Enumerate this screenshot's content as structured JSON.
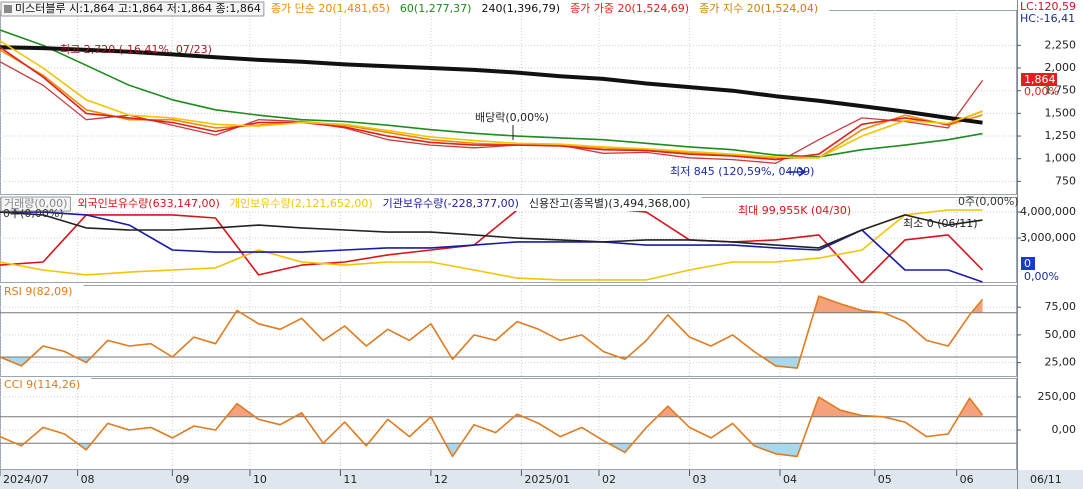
{
  "chart_data": [
    {
      "type": "line",
      "title": "미스터블루 시:1,864 고:1,864 저:1,864 종:1,864",
      "x": [
        0,
        10,
        20,
        30,
        40,
        50,
        60,
        70,
        80,
        90,
        100,
        110,
        120,
        130,
        140,
        150,
        160,
        170,
        180,
        190,
        200,
        210,
        220,
        228
      ],
      "xlim": [
        0,
        236
      ],
      "ylim": [
        600,
        2640
      ],
      "yticks": [
        {
          "value": 2250,
          "label": "2,250"
        },
        {
          "value": 2000,
          "label": "2,000"
        },
        {
          "value": 1750,
          "label": "1,750"
        },
        {
          "value": 1500,
          "label": "1,500"
        },
        {
          "value": 1250,
          "label": "1,250"
        },
        {
          "value": 1000,
          "label": "1,000"
        },
        750
      ],
      "grid": true,
      "color": "#c83c3c",
      "values": [
        2070,
        1810,
        1430,
        1480,
        1370,
        1260,
        1430,
        1410,
        1340,
        1210,
        1150,
        1120,
        1150,
        1150,
        1060,
        1070,
        1010,
        990,
        950,
        1210,
        1450,
        1410,
        1340,
        1864
      ],
      "series": [
        {
          "name": "종가 단순 20(1,481,65)",
          "color": "#f08a00",
          "values": [
            2200,
            1920,
            1540,
            1430,
            1430,
            1340,
            1370,
            1410,
            1370,
            1290,
            1210,
            1170,
            1150,
            1150,
            1120,
            1100,
            1070,
            1040,
            1010,
            1010,
            1320,
            1480,
            1370,
            1482
          ]
        },
        {
          "name": "60(1,277,37)",
          "color": "#1e8c1e",
          "values": [
            2420,
            2250,
            2030,
            1810,
            1650,
            1540,
            1480,
            1430,
            1410,
            1370,
            1320,
            1280,
            1250,
            1230,
            1210,
            1170,
            1130,
            1100,
            1040,
            1020,
            1100,
            1150,
            1210,
            1277
          ]
        },
        {
          "name": "240(1,396,79)",
          "color": "#111111",
          "width": 4,
          "values": [
            2230,
            2220,
            2200,
            2180,
            2150,
            2120,
            2090,
            2070,
            2040,
            2020,
            2000,
            1980,
            1950,
            1910,
            1880,
            1830,
            1790,
            1750,
            1690,
            1640,
            1580,
            1520,
            1450,
            1397
          ]
        },
        {
          "name": "종가 가중 20(1,524,69)",
          "color": "#e0201a",
          "values": [
            2230,
            1900,
            1500,
            1450,
            1400,
            1300,
            1400,
            1400,
            1350,
            1250,
            1180,
            1150,
            1150,
            1140,
            1100,
            1090,
            1050,
            1030,
            990,
            1050,
            1380,
            1450,
            1380,
            1525
          ]
        },
        {
          "name": "종가 지수 20(1,524,04)",
          "color": "#f5c400",
          "values": [
            2300,
            2000,
            1650,
            1480,
            1450,
            1380,
            1360,
            1400,
            1380,
            1310,
            1240,
            1200,
            1170,
            1160,
            1130,
            1110,
            1080,
            1050,
            1020,
            1010,
            1250,
            1420,
            1390,
            1524
          ]
        }
      ],
      "annotations": {
        "high": "최고 2,720 (-16,41%, 07/23)",
        "ex_dividend": "배당락(0,00%)",
        "low": "최저 845 (120,59%, 04/09)",
        "lc": "LC:120,59",
        "hc": "HC:-16,41",
        "last_price": "1,864",
        "last_pct": "0,00%"
      }
    },
    {
      "type": "line",
      "title": "거래량(0,00)",
      "x": [
        0,
        10,
        20,
        30,
        40,
        50,
        60,
        70,
        80,
        90,
        100,
        110,
        120,
        130,
        140,
        150,
        160,
        170,
        180,
        190,
        200,
        210,
        220,
        228
      ],
      "xlim": [
        0,
        236
      ],
      "ylim": [
        1270000,
        4580000
      ],
      "yticks": [
        {
          "value": 4000000,
          "label": "4,000,000"
        },
        {
          "value": 3000000,
          "label": "3,000,000"
        }
      ],
      "grid": true,
      "series": [
        {
          "name": "외국인보유수량(633,147,00)",
          "color": "#d8141a",
          "values": [
            1960000,
            2080000,
            3890000,
            3890000,
            3890000,
            3770000,
            1580000,
            1960000,
            2080000,
            2350000,
            2540000,
            2730000,
            4080000,
            4160000,
            4160000,
            4000000,
            2930000,
            2850000,
            2930000,
            3120000,
            1270000,
            2930000,
            3120000,
            1770000
          ]
        },
        {
          "name": "개인보유수량(2,121,652,00)",
          "color": "#f5c400",
          "values": [
            2080000,
            1770000,
            1580000,
            1690000,
            1770000,
            1850000,
            2540000,
            2080000,
            1960000,
            2080000,
            2080000,
            1770000,
            1460000,
            1390000,
            1390000,
            1390000,
            1770000,
            2080000,
            2080000,
            2230000,
            2540000,
            3890000,
            4080000,
            4080000
          ]
        },
        {
          "name": "기관보유수량(-228,377,00)",
          "color": "#1a1aa8",
          "values": [
            4000000,
            4000000,
            3890000,
            3500000,
            2540000,
            2460000,
            2460000,
            2460000,
            2540000,
            2620000,
            2620000,
            2730000,
            2850000,
            2850000,
            2850000,
            2730000,
            2730000,
            2730000,
            2620000,
            2540000,
            3310000,
            1770000,
            1770000,
            1310000
          ]
        },
        {
          "name": "신용잔고(종목별)(3,494,368,00)",
          "color": "#222222",
          "values": [
            4000000,
            3890000,
            3390000,
            3310000,
            3310000,
            3390000,
            3500000,
            3390000,
            3310000,
            3230000,
            3230000,
            3120000,
            3000000,
            2930000,
            2850000,
            2930000,
            2930000,
            2850000,
            2730000,
            2620000,
            3310000,
            3890000,
            3500000,
            3690000
          ]
        }
      ],
      "annotations": {
        "left_zero": "0주(0,00%)",
        "right_zero": "0주(0,00%)",
        "max": "최대 99,955K (04/30)",
        "min": "최소 0 (06/11)",
        "zero_box": "0",
        "zero_pct": "0,00%"
      }
    },
    {
      "type": "line",
      "x": [
        0,
        5,
        10,
        15,
        20,
        25,
        30,
        35,
        40,
        45,
        50,
        55,
        60,
        65,
        70,
        75,
        80,
        85,
        90,
        95,
        100,
        105,
        110,
        115,
        120,
        125,
        130,
        135,
        140,
        145,
        150,
        155,
        160,
        165,
        170,
        175,
        180,
        185,
        190,
        195,
        200,
        205,
        210,
        215,
        220,
        225,
        228
      ],
      "xlim": [
        0,
        236
      ],
      "ylim": [
        12,
        95
      ],
      "yticks": [
        {
          "value": 75,
          "label": "75,00"
        },
        {
          "value": 50,
          "label": "50,00"
        },
        {
          "value": 25,
          "label": "25,00"
        }
      ],
      "grid": true,
      "thresholds": [
        30,
        70
      ],
      "series": [
        {
          "name": "RSI 9(82,09)",
          "color": "#e07b20",
          "values": [
            30,
            22,
            40,
            35,
            25,
            45,
            40,
            42,
            30,
            48,
            42,
            72,
            60,
            55,
            65,
            45,
            58,
            40,
            55,
            45,
            60,
            28,
            50,
            45,
            62,
            55,
            45,
            50,
            35,
            28,
            45,
            68,
            48,
            40,
            50,
            35,
            22,
            20,
            85,
            78,
            72,
            70,
            62,
            45,
            40,
            68,
            82
          ]
        }
      ]
    },
    {
      "type": "line",
      "x": [
        0,
        5,
        10,
        15,
        20,
        25,
        30,
        35,
        40,
        45,
        50,
        55,
        60,
        65,
        70,
        75,
        80,
        85,
        90,
        95,
        100,
        105,
        110,
        115,
        120,
        125,
        130,
        135,
        140,
        145,
        150,
        155,
        160,
        165,
        170,
        175,
        180,
        185,
        190,
        195,
        200,
        205,
        210,
        215,
        220,
        225,
        228
      ],
      "xlim": [
        0,
        236
      ],
      "ylim": [
        -303,
        394
      ],
      "yticks": [
        {
          "value": 250,
          "label": "250,00"
        },
        {
          "value": 0,
          "label": "0,00"
        }
      ],
      "grid": true,
      "thresholds": [
        -100,
        100
      ],
      "series": [
        {
          "name": "CCI 9(114,26)",
          "color": "#e07b20",
          "values": [
            -50,
            -120,
            20,
            -30,
            -150,
            50,
            0,
            20,
            -60,
            30,
            0,
            200,
            80,
            40,
            130,
            -100,
            60,
            -120,
            80,
            -50,
            100,
            -200,
            40,
            -20,
            120,
            50,
            -50,
            20,
            -80,
            -170,
            20,
            180,
            20,
            -60,
            50,
            -120,
            -180,
            -200,
            250,
            150,
            110,
            100,
            60,
            -50,
            -30,
            240,
            114
          ]
        }
      ],
      "xticks": [
        {
          "value": 0,
          "label": "2024/07"
        },
        {
          "value": 18,
          "label": "08"
        },
        {
          "value": 40,
          "label": "09"
        },
        {
          "value": 58,
          "label": "10"
        },
        {
          "value": 79,
          "label": "11"
        },
        {
          "value": 100,
          "label": "12"
        },
        {
          "value": 121,
          "label": "2025/01"
        },
        {
          "value": 139,
          "label": "02"
        },
        {
          "value": 160,
          "label": "03"
        },
        {
          "value": 181,
          "label": "04"
        },
        {
          "value": 203,
          "label": "05"
        },
        {
          "value": 222,
          "label": "06"
        }
      ],
      "end_label": "06/11"
    }
  ]
}
